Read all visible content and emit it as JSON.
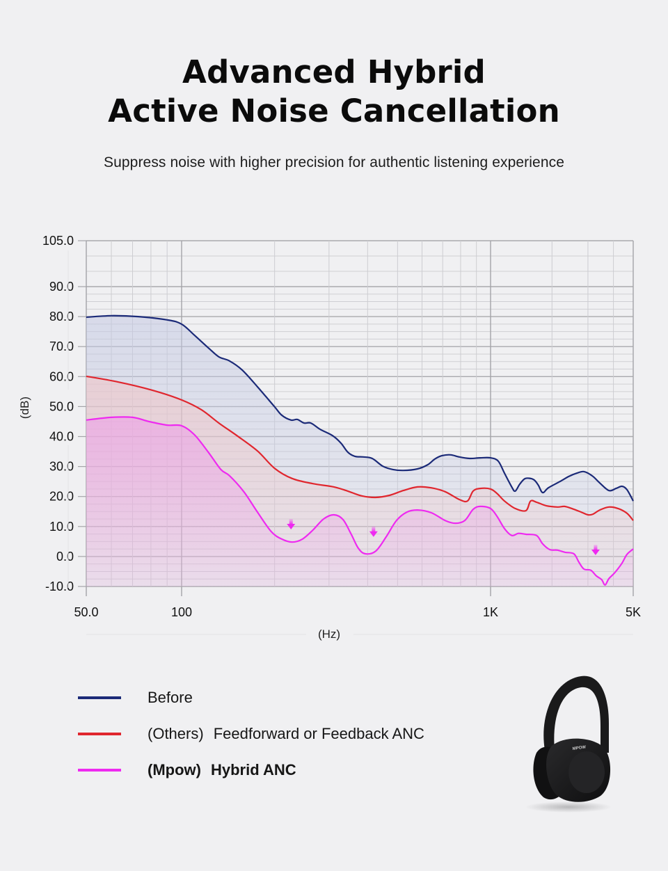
{
  "header": {
    "title_line1": "Advanced Hybrid",
    "title_line2": "Active Noise Cancellation",
    "subtitle": "Suppress noise with higher precision for authentic listening experience"
  },
  "chart_data": {
    "type": "line",
    "title": "Advanced Hybrid Active Noise Cancellation",
    "xlabel": "(Hz)",
    "ylabel": "(dB)",
    "xscale": "log",
    "xlim": [
      50,
      5000
    ],
    "ylim": [
      -10,
      105
    ],
    "x_tick_labels": [
      {
        "value": 50,
        "label": "50.0"
      },
      {
        "value": 100,
        "label": "100"
      },
      {
        "value": 1000,
        "label": "1K"
      },
      {
        "value": 5000,
        "label": "5K"
      }
    ],
    "y_tick_labels": [
      {
        "value": 105,
        "label": "105.0"
      },
      {
        "value": 90,
        "label": "90.0"
      },
      {
        "value": 80,
        "label": "80.0"
      },
      {
        "value": 70,
        "label": "70.0"
      },
      {
        "value": 60,
        "label": "60.0"
      },
      {
        "value": 50,
        "label": "50.0"
      },
      {
        "value": 40,
        "label": "40.0"
      },
      {
        "value": 30,
        "label": "30.0"
      },
      {
        "value": 20,
        "label": "20.0"
      },
      {
        "value": 10,
        "label": "10.0"
      },
      {
        "value": 0,
        "label": "0.0"
      },
      {
        "value": -10,
        "label": "-10.0"
      }
    ],
    "grid": true,
    "legend_position": "bottom-left",
    "series": [
      {
        "name": "Before",
        "color": "#1b2a78",
        "fill": "#c9cde3",
        "points": [
          [
            50,
            79.8
          ],
          [
            60,
            80.3
          ],
          [
            73,
            80.0
          ],
          [
            90,
            78.9
          ],
          [
            100,
            77.5
          ],
          [
            110,
            73.8
          ],
          [
            122,
            69.6
          ],
          [
            132,
            66.6
          ],
          [
            143,
            65.2
          ],
          [
            157,
            62.2
          ],
          [
            176,
            56.6
          ],
          [
            200,
            49.9
          ],
          [
            211,
            47.1
          ],
          [
            226,
            45.5
          ],
          [
            237,
            45.7
          ],
          [
            249,
            44.5
          ],
          [
            262,
            44.5
          ],
          [
            281,
            42.4
          ],
          [
            308,
            40.3
          ],
          [
            328,
            37.8
          ],
          [
            345,
            34.8
          ],
          [
            364,
            33.4
          ],
          [
            387,
            33.2
          ],
          [
            414,
            32.7
          ],
          [
            448,
            30.1
          ],
          [
            483,
            29.0
          ],
          [
            522,
            28.7
          ],
          [
            580,
            29.2
          ],
          [
            626,
            30.6
          ],
          [
            660,
            32.5
          ],
          [
            695,
            33.6
          ],
          [
            742,
            33.9
          ],
          [
            792,
            33.2
          ],
          [
            856,
            32.7
          ],
          [
            925,
            32.9
          ],
          [
            1000,
            32.9
          ],
          [
            1090,
            31.8
          ],
          [
            1170,
            27.8
          ],
          [
            1270,
            23.2
          ],
          [
            1320,
            21.8
          ],
          [
            1390,
            24.1
          ],
          [
            1480,
            26.0
          ],
          [
            1620,
            25.7
          ],
          [
            1710,
            23.9
          ],
          [
            1800,
            21.3
          ],
          [
            1920,
            22.9
          ],
          [
            2190,
            25.0
          ],
          [
            2420,
            26.7
          ],
          [
            2650,
            27.8
          ],
          [
            2870,
            28.3
          ],
          [
            3150,
            26.9
          ],
          [
            3420,
            24.6
          ],
          [
            3800,
            22.0
          ],
          [
            4120,
            22.7
          ],
          [
            4400,
            23.4
          ],
          [
            4660,
            22.3
          ],
          [
            5000,
            18.5
          ]
        ]
      },
      {
        "name": "(Others)  Feedforward or Feedback ANC",
        "color": "#e0262e",
        "fill": "#f2c9cc",
        "points": [
          [
            50,
            60.1
          ],
          [
            63,
            58.2
          ],
          [
            81,
            55.4
          ],
          [
            100,
            52.2
          ],
          [
            116,
            48.9
          ],
          [
            132,
            44.5
          ],
          [
            151,
            40.3
          ],
          [
            176,
            35.2
          ],
          [
            200,
            29.4
          ],
          [
            228,
            26.0
          ],
          [
            266,
            24.3
          ],
          [
            311,
            23.2
          ],
          [
            345,
            21.8
          ],
          [
            383,
            20.2
          ],
          [
            424,
            19.7
          ],
          [
            471,
            20.4
          ],
          [
            522,
            22.0
          ],
          [
            580,
            23.2
          ],
          [
            643,
            22.9
          ],
          [
            713,
            21.6
          ],
          [
            792,
            19.0
          ],
          [
            842,
            18.5
          ],
          [
            878,
            21.8
          ],
          [
            925,
            22.7
          ],
          [
            1000,
            22.5
          ],
          [
            1080,
            20.9
          ],
          [
            1170,
            18.5
          ],
          [
            1320,
            16.0
          ],
          [
            1490,
            15.3
          ],
          [
            1570,
            18.5
          ],
          [
            1680,
            18.1
          ],
          [
            1880,
            16.9
          ],
          [
            2130,
            16.5
          ],
          [
            2300,
            16.7
          ],
          [
            2500,
            16.0
          ],
          [
            2780,
            14.8
          ],
          [
            3000,
            13.9
          ],
          [
            3170,
            14.1
          ],
          [
            3430,
            15.5
          ],
          [
            3800,
            16.5
          ],
          [
            4210,
            16.0
          ],
          [
            4660,
            14.4
          ],
          [
            5000,
            12.0
          ]
        ]
      },
      {
        "name": "(Mpow)  Hybrid ANC",
        "color": "#ee2af0",
        "fill": "#f0b8ee",
        "points": [
          [
            50,
            45.5
          ],
          [
            60,
            46.4
          ],
          [
            70,
            46.4
          ],
          [
            79,
            45.0
          ],
          [
            90,
            43.8
          ],
          [
            100,
            43.6
          ],
          [
            110,
            40.6
          ],
          [
            122,
            34.8
          ],
          [
            134,
            29.0
          ],
          [
            143,
            26.9
          ],
          [
            159,
            21.6
          ],
          [
            176,
            14.8
          ],
          [
            195,
            8.3
          ],
          [
            211,
            5.8
          ],
          [
            228,
            4.8
          ],
          [
            246,
            5.8
          ],
          [
            266,
            8.8
          ],
          [
            288,
            12.5
          ],
          [
            311,
            13.9
          ],
          [
            333,
            12.3
          ],
          [
            354,
            7.4
          ],
          [
            373,
            2.8
          ],
          [
            393,
            0.9
          ],
          [
            425,
            1.8
          ],
          [
            459,
            6.5
          ],
          [
            496,
            12.0
          ],
          [
            536,
            14.8
          ],
          [
            580,
            15.5
          ],
          [
            643,
            14.6
          ],
          [
            713,
            12.0
          ],
          [
            769,
            11.1
          ],
          [
            825,
            12.0
          ],
          [
            878,
            15.7
          ],
          [
            925,
            16.7
          ],
          [
            1000,
            16.0
          ],
          [
            1080,
            13.2
          ],
          [
            1170,
            9.3
          ],
          [
            1270,
            7.0
          ],
          [
            1370,
            7.7
          ],
          [
            1490,
            7.4
          ],
          [
            1680,
            7.0
          ],
          [
            1800,
            4.2
          ],
          [
            1950,
            2.3
          ],
          [
            2130,
            2.1
          ],
          [
            2320,
            1.4
          ],
          [
            2560,
            0.9
          ],
          [
            2710,
            -1.9
          ],
          [
            2870,
            -4.2
          ],
          [
            3100,
            -4.6
          ],
          [
            3300,
            -6.5
          ],
          [
            3500,
            -7.7
          ],
          [
            3640,
            -9.5
          ],
          [
            3800,
            -7.4
          ],
          [
            4060,
            -5.4
          ],
          [
            4400,
            -2.3
          ],
          [
            4660,
            0.7
          ],
          [
            5000,
            2.5
          ]
        ]
      }
    ],
    "annotations": [
      {
        "type": "down-arrow",
        "color": "#ee2af0",
        "x": 226,
        "y": 10.2
      },
      {
        "type": "down-arrow",
        "color": "#ee2af0",
        "x": 418,
        "y": 7.7
      },
      {
        "type": "down-arrow",
        "color": "#ee2af0",
        "x": 3270,
        "y": 1.6
      }
    ]
  },
  "legend": {
    "items": [
      {
        "prefix": "",
        "label": "Before",
        "color": "#1b2a78",
        "bold": false
      },
      {
        "prefix": "(Others)",
        "label": "Feedforward or Feedback ANC",
        "color": "#e0262e",
        "bold": false
      },
      {
        "prefix": "(Mpow)",
        "label": "Hybrid ANC",
        "color": "#ee2af0",
        "bold": true
      }
    ]
  },
  "product": {
    "icon": "headphones-icon",
    "brand_mark": "MPOW"
  }
}
